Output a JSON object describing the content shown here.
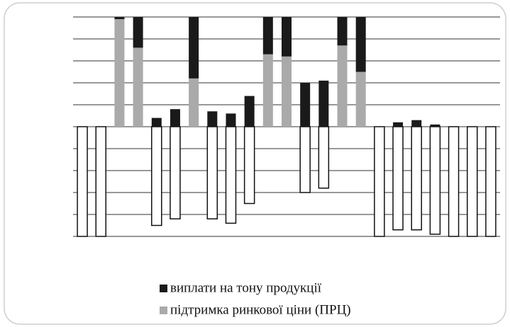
{
  "chart_data": {
    "type": "bar",
    "categories": [
      null,
      null,
      null,
      null,
      null,
      null,
      null,
      null,
      null,
      null,
      null,
      null,
      null,
      null,
      null,
      null,
      null,
      null,
      null,
      null,
      null,
      null,
      null
    ],
    "series": [
      {
        "name": "виплати на тону продукції",
        "color": "#1a1a1a",
        "values": [
          0,
          0,
          0.1,
          1.4,
          0.4,
          0.8,
          2.8,
          0.7,
          0.6,
          1.4,
          1.7,
          1.8,
          2.0,
          2.1,
          1.3,
          2.5,
          0,
          0.2,
          0.3,
          0.1,
          0,
          0,
          0
        ]
      },
      {
        "name": "підтримка ринкової ціни (ПРЦ)",
        "color": "#aaaaaa",
        "values": [
          0,
          0,
          4.9,
          3.6,
          0,
          0,
          2.2,
          0,
          0,
          0,
          3.3,
          3.2,
          0,
          0,
          3.7,
          2.5,
          0,
          0,
          0,
          0,
          0,
          0,
          0
        ]
      },
      {
        "color": "#ffffff",
        "values": [
          -5,
          -5,
          0,
          0,
          -4.5,
          -4.2,
          0,
          -4.2,
          -4.4,
          -3.5,
          0,
          0,
          -3.0,
          -2.8,
          0,
          0,
          -5,
          -4.7,
          -4.7,
          -4.9,
          -5,
          -5,
          -5
        ]
      }
    ],
    "ylim": [
      -5,
      5
    ],
    "yticks": [
      -5,
      -4,
      -3,
      -2,
      -1,
      0,
      1,
      2,
      3,
      4,
      5
    ],
    "grid": true
  }
}
